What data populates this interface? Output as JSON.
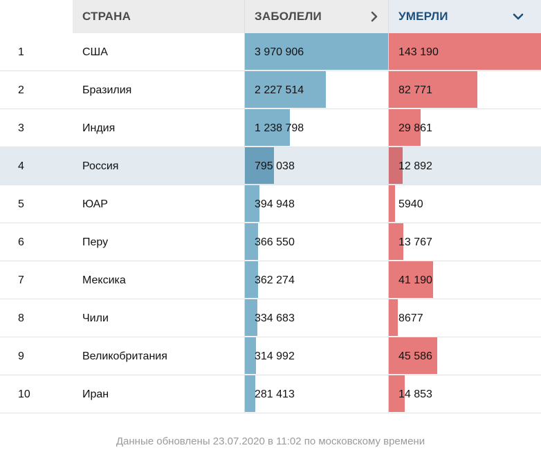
{
  "header": {
    "rank": "",
    "country": "СТРАНА",
    "cases": "ЗАБОЛЕЛИ",
    "deaths": "УМЕРЛИ",
    "cases_icon": "chevron-right-icon",
    "deaths_icon": "chevron-down-icon",
    "sorted_by": "deaths"
  },
  "colors": {
    "cases_bar": "#7fb3cc",
    "deaths_bar": "#e77b7b",
    "highlight_row": "#e3eaf0",
    "sorted_header_text": "#1c4f7c"
  },
  "rows": [
    {
      "rank": "1",
      "country": "США",
      "cases": "3 970 906",
      "deaths": "143 190",
      "cases_value": 3970906,
      "deaths_value": 143190
    },
    {
      "rank": "2",
      "country": "Бразилия",
      "cases": "2 227 514",
      "deaths": "82 771",
      "cases_value": 2227514,
      "deaths_value": 82771
    },
    {
      "rank": "3",
      "country": "Индия",
      "cases": "1 238 798",
      "deaths": "29 861",
      "cases_value": 1238798,
      "deaths_value": 29861
    },
    {
      "rank": "4",
      "country": "Россия",
      "cases": "795 038",
      "deaths": "12 892",
      "cases_value": 795038,
      "deaths_value": 12892,
      "highlight": true
    },
    {
      "rank": "5",
      "country": "ЮАР",
      "cases": "394 948",
      "deaths": "5940",
      "cases_value": 394948,
      "deaths_value": 5940
    },
    {
      "rank": "6",
      "country": "Перу",
      "cases": "366 550",
      "deaths": "13 767",
      "cases_value": 366550,
      "deaths_value": 13767
    },
    {
      "rank": "7",
      "country": "Мексика",
      "cases": "362 274",
      "deaths": "41 190",
      "cases_value": 362274,
      "deaths_value": 41190
    },
    {
      "rank": "8",
      "country": "Чили",
      "cases": "334 683",
      "deaths": "8677",
      "cases_value": 334683,
      "deaths_value": 8677
    },
    {
      "rank": "9",
      "country": "Великобритания",
      "cases": "314 992",
      "deaths": "45 586",
      "cases_value": 314992,
      "deaths_value": 45586
    },
    {
      "rank": "10",
      "country": "Иран",
      "cases": "281 413",
      "deaths": "14 853",
      "cases_value": 281413,
      "deaths_value": 14853
    }
  ],
  "footer": {
    "text": "Данные обновлены 23.07.2020 в 11:02 по московскому времени"
  }
}
